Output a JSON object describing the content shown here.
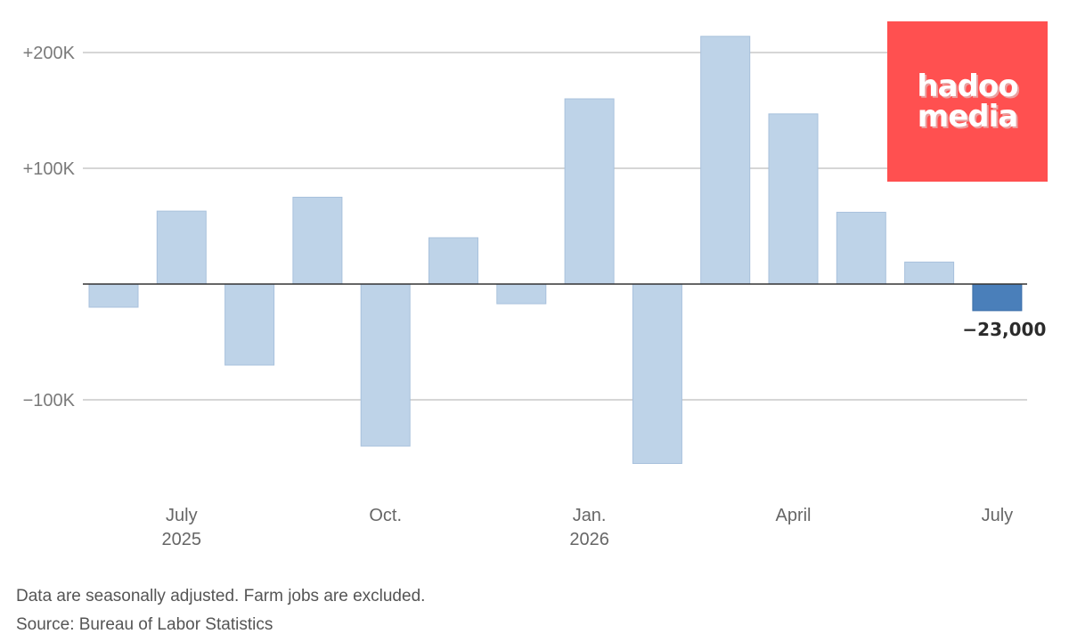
{
  "chart_data": {
    "type": "bar",
    "title": "",
    "xlabel": "",
    "ylabel": "",
    "ylim": [
      -160000,
      215000
    ],
    "yticks": [
      {
        "value": 200000,
        "label": "+200K"
      },
      {
        "value": 100000,
        "label": "+100K"
      },
      {
        "value": -100000,
        "label": "−100K"
      }
    ],
    "x_tick_labels": [
      {
        "month_index": 1,
        "line1": "July",
        "line2": "2025"
      },
      {
        "month_index": 4,
        "line1": "Oct.",
        "line2": ""
      },
      {
        "month_index": 7,
        "line1": "Jan.",
        "line2": "2026"
      },
      {
        "month_index": 10,
        "line1": "April",
        "line2": ""
      },
      {
        "month_index": 13,
        "line1": "July",
        "line2": ""
      }
    ],
    "categories": [
      "2025-06",
      "2025-07",
      "2025-08",
      "2025-09",
      "2025-10",
      "2025-11",
      "2025-12",
      "2026-01",
      "2026-02",
      "2026-03",
      "2026-04",
      "2026-05",
      "2026-06",
      "2026-07"
    ],
    "values": [
      -20000,
      63000,
      -70000,
      75000,
      -140000,
      40000,
      -17000,
      160000,
      -155000,
      214000,
      147000,
      62000,
      19000,
      -23000
    ],
    "highlight_index": 13,
    "highlight_label": "−23,000",
    "colors": {
      "bar": "#bed3e8",
      "bar_stroke": "#a8c1dc",
      "highlight": "#4a7fba",
      "highlight_stroke": "#3a6ea8",
      "grid": "#c9c9c9",
      "zero_line": "#333333"
    },
    "grid": true
  },
  "notes": {
    "line1": "Data are seasonally adjusted. Farm jobs are excluded.",
    "line2": "Source: Bureau of Labor Statistics"
  },
  "logo": {
    "line1": "hadoo",
    "line2": "media",
    "background": "#ff5050"
  }
}
